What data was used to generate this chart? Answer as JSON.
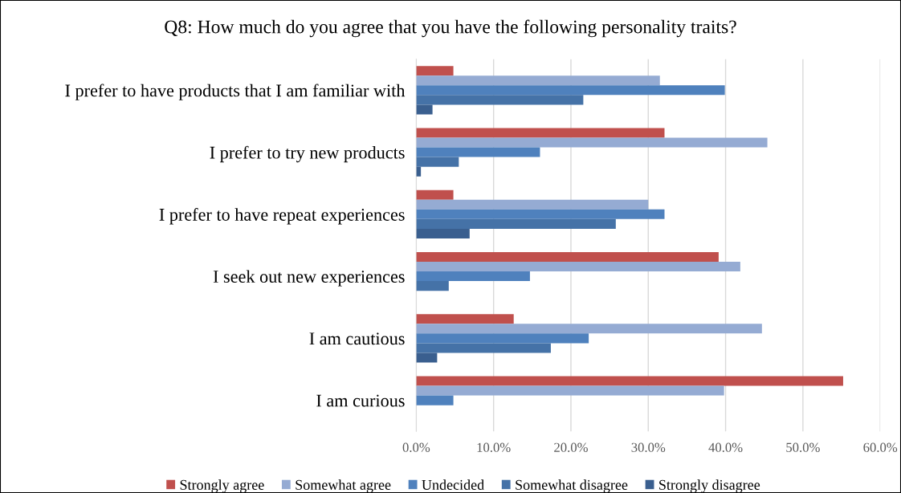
{
  "chart_data": {
    "type": "bar",
    "orientation": "horizontal",
    "title": "Q8: How much do you agree that you have the following personality traits?",
    "categories": [
      "I prefer to have products that I am familiar with",
      "I prefer to try new products",
      "I prefer to have repeat experiences",
      "I seek out new experiences",
      "I am cautious",
      "I am curious"
    ],
    "series": [
      {
        "name": "Strongly agree",
        "color": "#c0504d",
        "values": [
          4.8,
          32.1,
          4.8,
          39.1,
          12.6,
          55.2
        ]
      },
      {
        "name": "Somewhat agree",
        "color": "#95abd3",
        "values": [
          31.5,
          45.4,
          30.0,
          41.9,
          44.7,
          39.8
        ]
      },
      {
        "name": "Undecided",
        "color": "#4f81bd",
        "values": [
          39.9,
          16.0,
          32.1,
          14.7,
          22.3,
          4.8
        ]
      },
      {
        "name": "Somewhat disagree",
        "color": "#4572a7",
        "values": [
          21.6,
          5.5,
          25.8,
          4.2,
          17.4,
          0
        ]
      },
      {
        "name": "Strongly disagree",
        "color": "#3a5f8f",
        "values": [
          2.1,
          0.6,
          6.9,
          0,
          2.7,
          0
        ]
      }
    ],
    "xlim": [
      0,
      60
    ],
    "xticks": [
      {
        "value": 0,
        "label": "0.0%"
      },
      {
        "value": 10,
        "label": "10.0%"
      },
      {
        "value": 20,
        "label": "20.0%"
      },
      {
        "value": 30,
        "label": "30.0%"
      },
      {
        "value": 40,
        "label": "40.0%"
      },
      {
        "value": 50,
        "label": "50.0%"
      },
      {
        "value": 60,
        "label": "60.0%"
      }
    ],
    "grid": "x",
    "legend": "bottom"
  }
}
